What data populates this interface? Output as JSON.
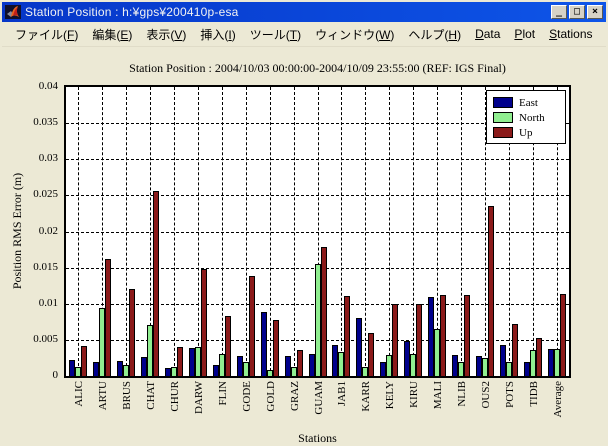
{
  "window": {
    "title": "Station Position : h:¥gps¥200410p-esa",
    "icon": "matlab-flame-icon",
    "buttons": {
      "minimize": "_",
      "maximize": "□",
      "close": "×"
    }
  },
  "menu": {
    "items": [
      {
        "name": "file",
        "label": "ファイル(F)",
        "accel": "F"
      },
      {
        "name": "edit",
        "label": "編集(E)",
        "accel": "E"
      },
      {
        "name": "view",
        "label": "表示(V)",
        "accel": "V"
      },
      {
        "name": "insert",
        "label": "挿入(I)",
        "accel": "I"
      },
      {
        "name": "tools",
        "label": "ツール(T)",
        "accel": "T"
      },
      {
        "name": "window",
        "label": "ウィンドウ(W)",
        "accel": "W"
      },
      {
        "name": "help",
        "label": "ヘルプ(H)",
        "accel": "H"
      },
      {
        "name": "data",
        "label": "Data",
        "accel": "D"
      },
      {
        "name": "plot",
        "label": "Plot",
        "accel": "P"
      },
      {
        "name": "stations",
        "label": "Stations",
        "accel": "S"
      }
    ]
  },
  "chart_data": {
    "type": "bar",
    "title": "Station Position : 2004/10/03 00:00:00-2004/10/09 23:55:00 (REF: IGS Final)",
    "xlabel": "Stations",
    "ylabel": "Position RMS Error (m)",
    "ylim": [
      0,
      0.04
    ],
    "ytick_step": 0.005,
    "ytick_labels": [
      "0",
      "0.005",
      "0.01",
      "0.015",
      "0.02",
      "0.025",
      "0.03",
      "0.035",
      "0.04"
    ],
    "grid": "dashed, both axes",
    "legend_position": "top-right inside plot",
    "categories": [
      "ALIC",
      "ARTU",
      "BRUS",
      "CHAT",
      "CHUR",
      "DARW",
      "FLIN",
      "GODE",
      "GOLD",
      "GRAZ",
      "GUAM",
      "JAB1",
      "KARR",
      "KELY",
      "KIRU",
      "MALI",
      "NLIB",
      "OUS2",
      "POTS",
      "TIDB",
      "Average"
    ],
    "series": [
      {
        "name": "East",
        "color": "#00008C",
        "values": [
          0.0022,
          0.002,
          0.0021,
          0.0027,
          0.0011,
          0.0039,
          0.0015,
          0.0028,
          0.0088,
          0.0028,
          0.003,
          0.0043,
          0.008,
          0.002,
          0.0048,
          0.011,
          0.0029,
          0.0028,
          0.0043,
          0.002,
          0.0037
        ]
      },
      {
        "name": "North",
        "color": "#90EE90",
        "values": [
          0.0013,
          0.0094,
          0.0015,
          0.007,
          0.0013,
          0.004,
          0.003,
          0.002,
          0.0008,
          0.0013,
          0.0155,
          0.0033,
          0.0013,
          0.0029,
          0.0031,
          0.0065,
          0.002,
          0.0025,
          0.002,
          0.0036,
          0.0038
        ]
      },
      {
        "name": "Up",
        "color": "#8B1A1A",
        "values": [
          0.0042,
          0.0162,
          0.0121,
          0.0256,
          0.004,
          0.0148,
          0.0083,
          0.0139,
          0.0078,
          0.0036,
          0.0179,
          0.0111,
          0.006,
          0.01,
          0.01,
          0.0112,
          0.0112,
          0.0236,
          0.0072,
          0.0052,
          0.0113
        ]
      }
    ]
  },
  "colors": {
    "titlebar_bg": "#0A4AD8",
    "titlebar_text": "#F2F2F2",
    "figure_bg": "#ECE9D5",
    "plot_bg": "#FFFFFF",
    "axis_color": "#000000",
    "east": "#00008C",
    "north": "#90EE90",
    "up": "#8B1A1A"
  }
}
